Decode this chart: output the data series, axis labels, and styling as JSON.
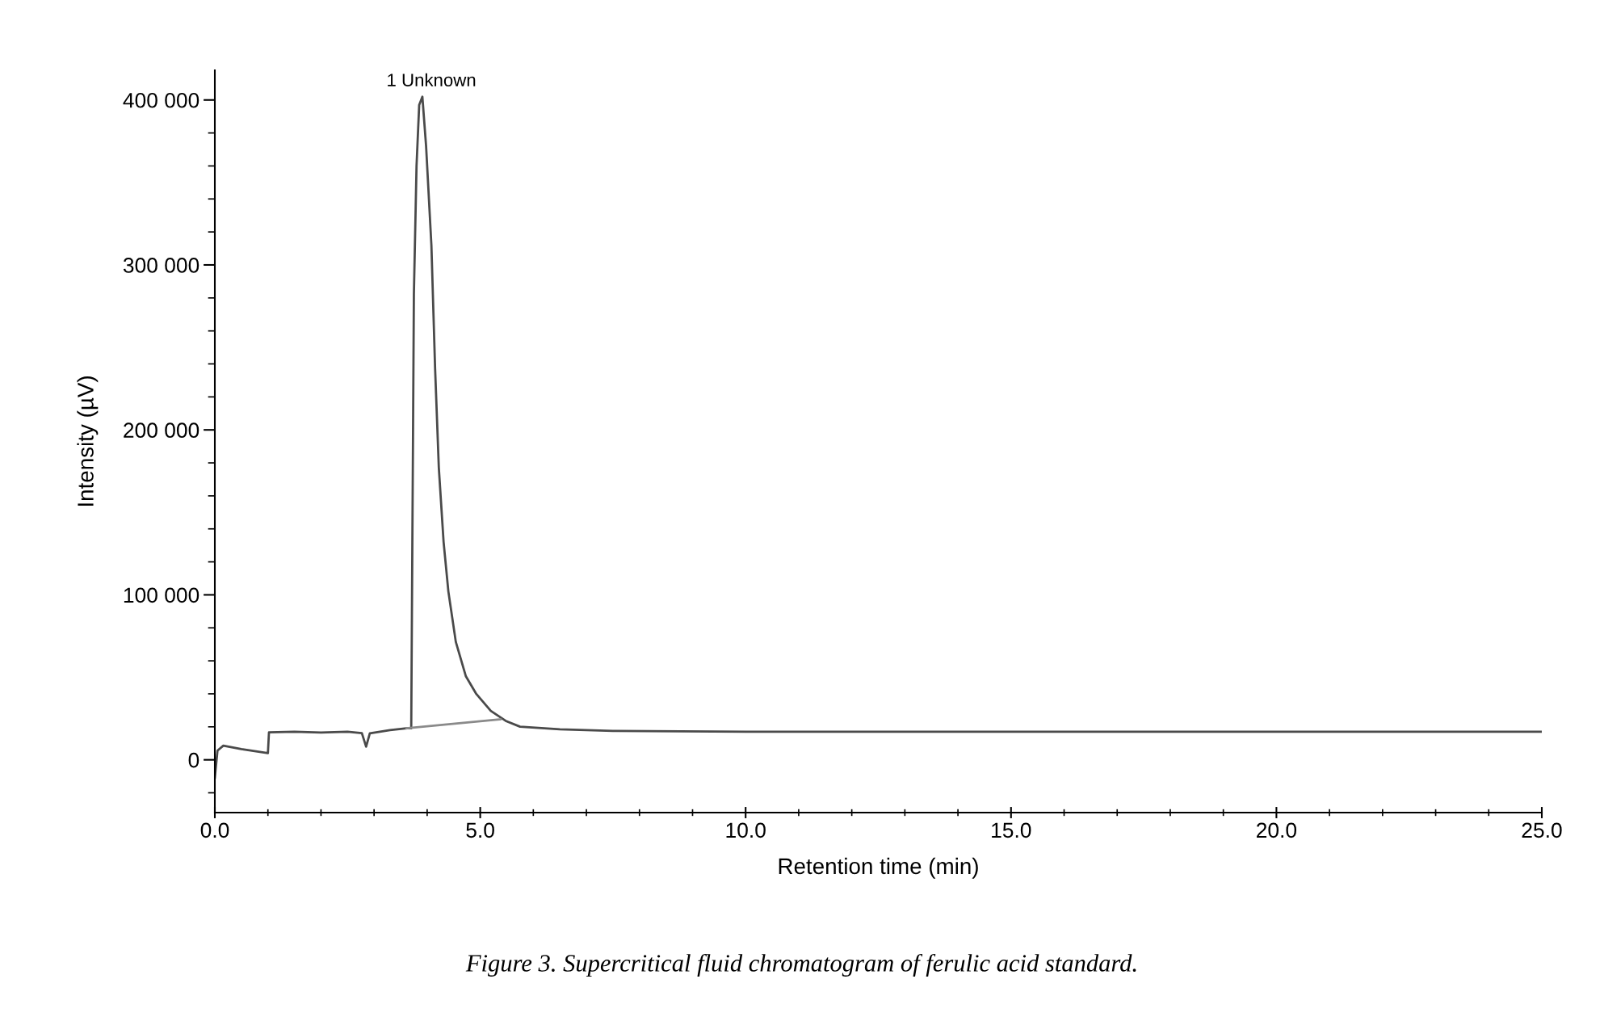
{
  "chart_data": {
    "type": "line",
    "xlabel": "Retention time (min)",
    "ylabel": "Intensity (µV)",
    "series": [
      {
        "color": "#4a4a4a",
        "x": [
          0,
          0.05,
          0.16,
          0.5,
          1.0,
          1.02,
          1.5,
          2.0,
          2.5,
          2.77,
          2.85,
          2.92,
          3.3,
          3.61,
          3.7,
          3.75,
          3.8,
          3.85,
          3.91,
          3.98,
          4.08,
          4.15,
          4.22,
          4.31,
          4.4,
          4.54,
          4.73,
          4.92,
          5.2,
          5.48,
          5.75,
          6.5,
          7.5,
          10,
          12.5,
          15,
          17.5,
          20,
          22.5,
          25
        ],
        "values": [
          -10800,
          5600,
          8600,
          6500,
          4100,
          16700,
          17000,
          16500,
          17000,
          16200,
          8000,
          16000,
          18000,
          19100,
          19100,
          282000,
          360000,
          397000,
          402000,
          372000,
          312000,
          237000,
          177000,
          132000,
          102000,
          71500,
          50600,
          40200,
          29600,
          23600,
          20100,
          18500,
          17500,
          17000,
          17000,
          17000,
          17000,
          17000,
          17000,
          17000
        ]
      },
      {
        "color": "#8a8a8a",
        "x": [
          3.61,
          5.38
        ],
        "values": [
          19100,
          24500
        ]
      }
    ],
    "xlim": [
      0,
      25
    ],
    "ylim": [
      -32000,
      418000
    ],
    "xticks": [
      {
        "value": 0,
        "label": "0.0"
      },
      {
        "value": 1,
        "label": null
      },
      {
        "value": 2,
        "label": null
      },
      {
        "value": 3,
        "label": null
      },
      {
        "value": 4,
        "label": null
      },
      {
        "value": 5,
        "label": "5.0"
      },
      {
        "value": 6,
        "label": null
      },
      {
        "value": 7,
        "label": null
      },
      {
        "value": 8,
        "label": null
      },
      {
        "value": 9,
        "label": null
      },
      {
        "value": 10,
        "label": "10.0"
      },
      {
        "value": 11,
        "label": null
      },
      {
        "value": 12,
        "label": null
      },
      {
        "value": 13,
        "label": null
      },
      {
        "value": 14,
        "label": null
      },
      {
        "value": 15,
        "label": "15.0"
      },
      {
        "value": 16,
        "label": null
      },
      {
        "value": 17,
        "label": null
      },
      {
        "value": 18,
        "label": null
      },
      {
        "value": 19,
        "label": null
      },
      {
        "value": 20,
        "label": "20.0"
      },
      {
        "value": 21,
        "label": null
      },
      {
        "value": 22,
        "label": null
      },
      {
        "value": 23,
        "label": null
      },
      {
        "value": 24,
        "label": null
      },
      {
        "value": 25,
        "label": "25.0"
      }
    ],
    "yticks": [
      {
        "value": -20000,
        "label": null
      },
      0,
      {
        "value": 20000,
        "label": null
      },
      {
        "value": 40000,
        "label": null
      },
      {
        "value": 60000,
        "label": null
      },
      {
        "value": 80000,
        "label": null
      },
      {
        "value": 100000,
        "label": "100 000"
      },
      {
        "value": 120000,
        "label": null
      },
      {
        "value": 140000,
        "label": null
      },
      {
        "value": 160000,
        "label": null
      },
      {
        "value": 180000,
        "label": null
      },
      {
        "value": 200000,
        "label": "200 000"
      },
      {
        "value": 220000,
        "label": null
      },
      {
        "value": 240000,
        "label": null
      },
      {
        "value": 260000,
        "label": null
      },
      {
        "value": 280000,
        "label": null
      },
      {
        "value": 300000,
        "label": "300 000"
      },
      {
        "value": 320000,
        "label": null
      },
      {
        "value": 340000,
        "label": null
      },
      {
        "value": 360000,
        "label": null
      },
      {
        "value": 380000,
        "label": null
      },
      {
        "value": 400000,
        "label": "400 000"
      }
    ],
    "grid": false,
    "marker": "none",
    "line_style": "solid",
    "annotations": [
      {
        "text": "1 Unknown",
        "x": 3.91,
        "y": 402000
      },
      "Figure 3. Supercritical fluid chromatogram of ferulic acid standard."
    ]
  }
}
